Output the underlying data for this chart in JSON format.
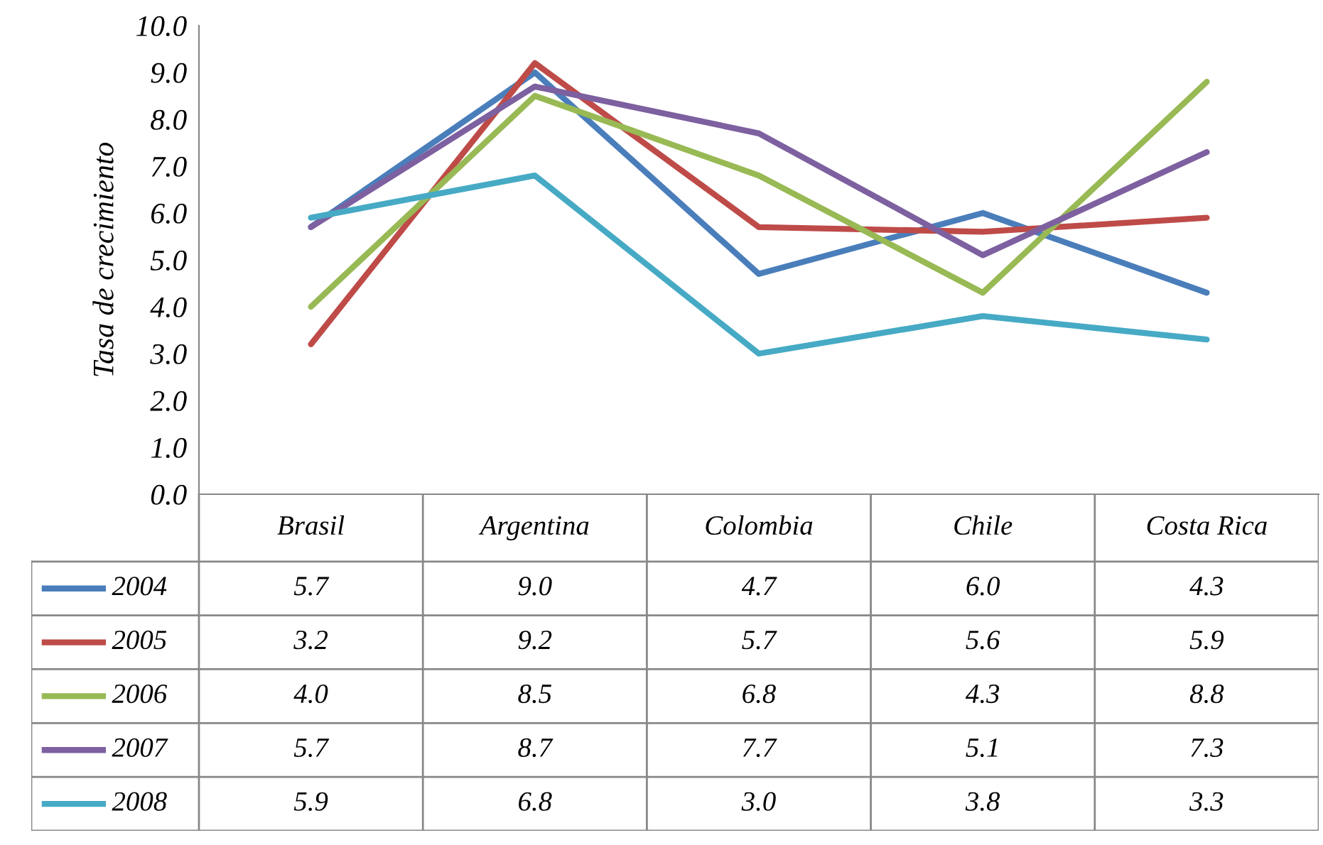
{
  "chart_data": {
    "type": "line",
    "ylabel": "Tasa de crecimiento",
    "categories": [
      "Brasil",
      "Argentina",
      "Colombia",
      "Chile",
      "Costa Rica"
    ],
    "series": [
      {
        "name": "2004",
        "color": "#4a7ebb",
        "values": [
          5.7,
          9.0,
          4.7,
          6.0,
          4.3
        ],
        "value_labels": [
          "5.7",
          "9.0",
          "4.7",
          "6.0",
          "4.3"
        ]
      },
      {
        "name": "2005",
        "color": "#be4b48",
        "values": [
          3.2,
          9.2,
          5.7,
          5.6,
          5.9
        ],
        "value_labels": [
          "3.2",
          "9.2",
          "5.7",
          "5.6",
          "5.9"
        ]
      },
      {
        "name": "2006",
        "color": "#98b954",
        "values": [
          4.0,
          8.5,
          6.8,
          4.3,
          8.8
        ],
        "value_labels": [
          "4.0",
          "8.5",
          "6.8",
          "4.3",
          "8.8"
        ]
      },
      {
        "name": "2007",
        "color": "#7d60a0",
        "values": [
          5.7,
          8.7,
          7.7,
          5.1,
          7.3
        ],
        "value_labels": [
          "5.7",
          "8.7",
          "7.7",
          "5.1",
          "7.3"
        ]
      },
      {
        "name": "2008",
        "color": "#46aac5",
        "values": [
          5.9,
          6.8,
          3.0,
          3.8,
          3.3
        ],
        "value_labels": [
          "5.9",
          "6.8",
          "3.0",
          "3.8",
          "3.3"
        ]
      }
    ],
    "ylim": [
      0,
      10
    ],
    "yticks": [
      {
        "value": 0,
        "label": "0.0"
      },
      {
        "value": 1,
        "label": "1.0"
      },
      {
        "value": 2,
        "label": "2.0"
      },
      {
        "value": 3,
        "label": "3.0"
      },
      {
        "value": 4,
        "label": "4.0"
      },
      {
        "value": 5,
        "label": "5.0"
      },
      {
        "value": 6,
        "label": "6.0"
      },
      {
        "value": 7,
        "label": "7.0"
      },
      {
        "value": 8,
        "label": "8.0"
      },
      {
        "value": 9,
        "label": "9.0"
      },
      {
        "value": 10,
        "label": "10.0"
      }
    ],
    "legend": "bottom left",
    "grid": false,
    "marker": "none",
    "line_style": "solid"
  }
}
